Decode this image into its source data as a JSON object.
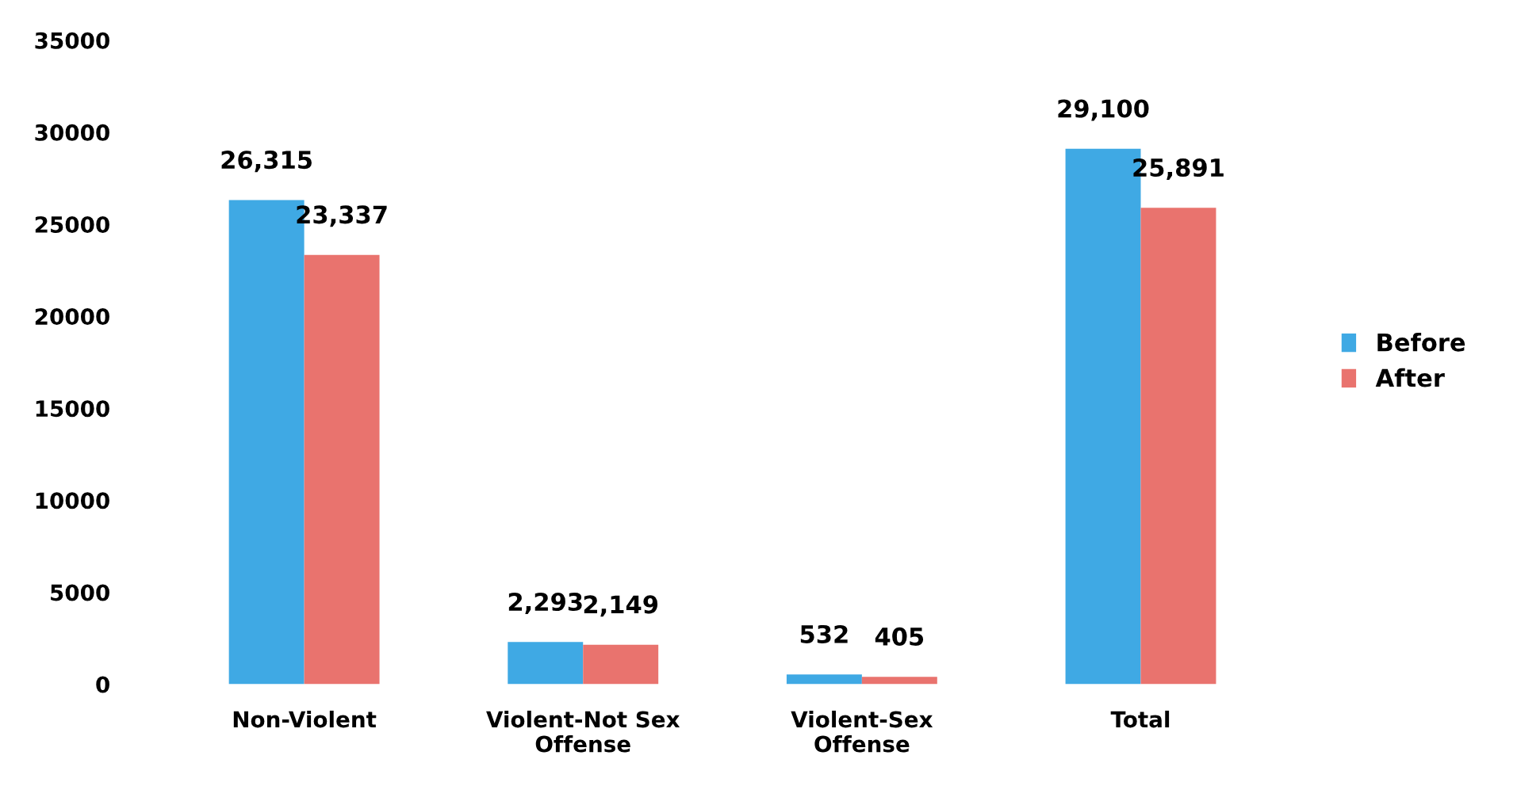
{
  "chart_data": {
    "type": "bar",
    "categories": [
      "Non-Violent",
      "Violent-Not Sex Offense",
      "Violent-Sex Offense",
      "Total"
    ],
    "series": [
      {
        "name": "Before",
        "color": "#3fa9e4",
        "values": [
          26315,
          2293,
          532,
          29100
        ],
        "value_labels": [
          "26,315",
          "2,293",
          "532",
          "29,100"
        ]
      },
      {
        "name": "After",
        "color": "#e9736e",
        "values": [
          23337,
          2149,
          405,
          25891
        ],
        "value_labels": [
          "23,337",
          "2,149",
          "405",
          "25,891"
        ]
      }
    ],
    "ylim": [
      0,
      35000
    ],
    "yticks": [
      0,
      5000,
      10000,
      15000,
      20000,
      25000,
      30000,
      35000
    ],
    "grid": false,
    "legend": "right"
  }
}
